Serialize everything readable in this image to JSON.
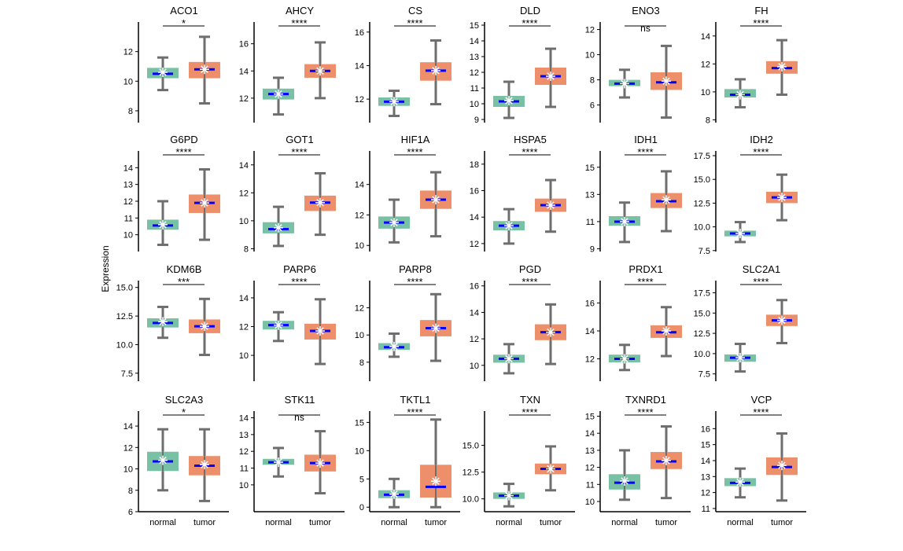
{
  "figure": {
    "ylabel": "Expression",
    "categories": [
      "normal",
      "tumor"
    ],
    "colors": {
      "normal": "#79c1a5",
      "tumor": "#ec8f6a",
      "whisker": "#6e6e6e",
      "median": "#0000ff",
      "mean": "#ffffff"
    }
  },
  "chart_data": [
    {
      "type": "boxplot",
      "title": "ACO1",
      "sig": "*",
      "ylim": [
        7.2,
        14.0
      ],
      "yticks": [
        8,
        10,
        12
      ],
      "boxes": [
        {
          "category": "normal",
          "min": 9.4,
          "q1": 10.2,
          "median": 10.5,
          "mean": 10.6,
          "q3": 10.9,
          "max": 11.6
        },
        {
          "category": "tumor",
          "min": 8.5,
          "q1": 10.2,
          "median": 10.8,
          "mean": 10.8,
          "q3": 11.3,
          "max": 13.0
        }
      ]
    },
    {
      "type": "boxplot",
      "title": "AHCY",
      "sig": "****",
      "ylim": [
        10.2,
        17.6
      ],
      "yticks": [
        12,
        14,
        16
      ],
      "boxes": [
        {
          "category": "normal",
          "min": 10.8,
          "q1": 11.9,
          "median": 12.3,
          "mean": 12.3,
          "q3": 12.7,
          "max": 13.5
        },
        {
          "category": "tumor",
          "min": 12.0,
          "q1": 13.5,
          "median": 14.0,
          "mean": 14.0,
          "q3": 14.5,
          "max": 16.1
        }
      ]
    },
    {
      "type": "boxplot",
      "title": "CS",
      "sig": "****",
      "ylim": [
        10.6,
        16.6
      ],
      "yticks": [
        12,
        14,
        16
      ],
      "boxes": [
        {
          "category": "normal",
          "min": 11.0,
          "q1": 11.6,
          "median": 11.85,
          "mean": 11.85,
          "q3": 12.1,
          "max": 12.5
        },
        {
          "category": "tumor",
          "min": 11.7,
          "q1": 13.1,
          "median": 13.7,
          "mean": 13.7,
          "q3": 14.2,
          "max": 15.5
        }
      ]
    },
    {
      "type": "boxplot",
      "title": "DLD",
      "sig": "****",
      "ylim": [
        8.8,
        15.2
      ],
      "yticks": [
        9,
        10,
        11,
        12,
        13,
        14,
        15
      ],
      "boxes": [
        {
          "category": "normal",
          "min": 9.1,
          "q1": 9.8,
          "median": 10.15,
          "mean": 10.2,
          "q3": 10.5,
          "max": 11.4
        },
        {
          "category": "tumor",
          "min": 9.8,
          "q1": 11.2,
          "median": 11.75,
          "mean": 11.75,
          "q3": 12.3,
          "max": 13.5
        }
      ]
    },
    {
      "type": "boxplot",
      "title": "ENO3",
      "sig": "ns",
      "ylim": [
        4.6,
        12.6
      ],
      "yticks": [
        6,
        8,
        10,
        12
      ],
      "boxes": [
        {
          "category": "normal",
          "min": 6.6,
          "q1": 7.5,
          "median": 7.7,
          "mean": 7.7,
          "q3": 8.0,
          "max": 8.8
        },
        {
          "category": "tumor",
          "min": 5.0,
          "q1": 7.2,
          "median": 7.8,
          "mean": 7.9,
          "q3": 8.6,
          "max": 10.7
        }
      ]
    },
    {
      "type": "boxplot",
      "title": "FH",
      "sig": "****",
      "ylim": [
        7.8,
        15.0
      ],
      "yticks": [
        8,
        10,
        12,
        14
      ],
      "boxes": [
        {
          "category": "normal",
          "min": 8.9,
          "q1": 9.6,
          "median": 9.8,
          "mean": 9.8,
          "q3": 10.2,
          "max": 10.9
        },
        {
          "category": "tumor",
          "min": 9.8,
          "q1": 11.3,
          "median": 11.7,
          "mean": 11.8,
          "q3": 12.2,
          "max": 13.7
        }
      ]
    },
    {
      "type": "boxplot",
      "title": "G6PD",
      "sig": "****",
      "ylim": [
        9.0,
        15.0
      ],
      "yticks": [
        10,
        11,
        12,
        13,
        14
      ],
      "boxes": [
        {
          "category": "normal",
          "min": 9.4,
          "q1": 10.3,
          "median": 10.55,
          "mean": 10.6,
          "q3": 10.9,
          "max": 12.0
        },
        {
          "category": "tumor",
          "min": 9.7,
          "q1": 11.3,
          "median": 11.9,
          "mean": 11.9,
          "q3": 12.4,
          "max": 13.9
        }
      ]
    },
    {
      "type": "boxplot",
      "title": "GOT1",
      "sig": "****",
      "ylim": [
        7.8,
        15.0
      ],
      "yticks": [
        8,
        10,
        12,
        14
      ],
      "boxes": [
        {
          "category": "normal",
          "min": 8.2,
          "q1": 9.1,
          "median": 9.4,
          "mean": 9.5,
          "q3": 9.9,
          "max": 11.0
        },
        {
          "category": "tumor",
          "min": 9.0,
          "q1": 10.7,
          "median": 11.3,
          "mean": 11.3,
          "q3": 11.8,
          "max": 13.4
        }
      ]
    },
    {
      "type": "boxplot",
      "title": "HIF1A",
      "sig": "****",
      "ylim": [
        9.6,
        16.2
      ],
      "yticks": [
        10,
        12,
        14
      ],
      "boxes": [
        {
          "category": "normal",
          "min": 10.2,
          "q1": 11.1,
          "median": 11.5,
          "mean": 11.5,
          "q3": 11.9,
          "max": 13.0
        },
        {
          "category": "tumor",
          "min": 10.6,
          "q1": 12.4,
          "median": 13.0,
          "mean": 13.0,
          "q3": 13.6,
          "max": 14.8
        }
      ]
    },
    {
      "type": "boxplot",
      "title": "HSPA5",
      "sig": "****",
      "ylim": [
        11.4,
        19.0
      ],
      "yticks": [
        12,
        14,
        16,
        18
      ],
      "boxes": [
        {
          "category": "normal",
          "min": 12.0,
          "q1": 13.0,
          "median": 13.35,
          "mean": 13.35,
          "q3": 13.7,
          "max": 14.6
        },
        {
          "category": "tumor",
          "min": 12.9,
          "q1": 14.4,
          "median": 14.9,
          "mean": 14.9,
          "q3": 15.4,
          "max": 16.8
        }
      ]
    },
    {
      "type": "boxplot",
      "title": "IDH1",
      "sig": "****",
      "ylim": [
        8.8,
        16.2
      ],
      "yticks": [
        9,
        11,
        13,
        15
      ],
      "boxes": [
        {
          "category": "normal",
          "min": 9.5,
          "q1": 10.7,
          "median": 11.0,
          "mean": 11.0,
          "q3": 11.4,
          "max": 12.4
        },
        {
          "category": "tumor",
          "min": 10.3,
          "q1": 12.0,
          "median": 12.5,
          "mean": 12.6,
          "q3": 13.1,
          "max": 14.7
        }
      ]
    },
    {
      "type": "boxplot",
      "title": "IDH2",
      "sig": "****",
      "ylim": [
        7.4,
        18.0
      ],
      "yticks": [
        7.5,
        10.0,
        12.5,
        15.0,
        17.5
      ],
      "boxes": [
        {
          "category": "normal",
          "min": 8.4,
          "q1": 9.0,
          "median": 9.3,
          "mean": 9.3,
          "q3": 9.6,
          "max": 10.5
        },
        {
          "category": "tumor",
          "min": 10.7,
          "q1": 12.5,
          "median": 13.1,
          "mean": 13.1,
          "q3": 13.7,
          "max": 15.5
        }
      ]
    },
    {
      "type": "boxplot",
      "title": "KDM6B",
      "sig": "***",
      "ylim": [
        6.8,
        15.6
      ],
      "yticks": [
        7.5,
        10.0,
        12.5,
        15.0
      ],
      "boxes": [
        {
          "category": "normal",
          "min": 10.6,
          "q1": 11.5,
          "median": 11.9,
          "mean": 12.0,
          "q3": 12.3,
          "max": 13.3
        },
        {
          "category": "tumor",
          "min": 9.1,
          "q1": 11.0,
          "median": 11.6,
          "mean": 11.6,
          "q3": 12.2,
          "max": 14.0
        }
      ]
    },
    {
      "type": "boxplot",
      "title": "PARP6",
      "sig": "****",
      "ylim": [
        8.2,
        15.2
      ],
      "yticks": [
        10,
        12,
        14
      ],
      "boxes": [
        {
          "category": "normal",
          "min": 11.0,
          "q1": 11.8,
          "median": 12.1,
          "mean": 12.1,
          "q3": 12.4,
          "max": 13.0
        },
        {
          "category": "tumor",
          "min": 9.4,
          "q1": 11.1,
          "median": 11.7,
          "mean": 11.7,
          "q3": 12.2,
          "max": 13.9
        }
      ]
    },
    {
      "type": "boxplot",
      "title": "PARP8",
      "sig": "****",
      "ylim": [
        6.6,
        14.0
      ],
      "yticks": [
        8,
        10,
        12
      ],
      "boxes": [
        {
          "category": "normal",
          "min": 8.4,
          "q1": 8.9,
          "median": 9.1,
          "mean": 9.15,
          "q3": 9.4,
          "max": 10.1
        },
        {
          "category": "tumor",
          "min": 8.1,
          "q1": 9.9,
          "median": 10.5,
          "mean": 10.5,
          "q3": 11.1,
          "max": 13.0
        }
      ]
    },
    {
      "type": "boxplot",
      "title": "PGD",
      "sig": "****",
      "ylim": [
        8.8,
        16.4
      ],
      "yticks": [
        10,
        12,
        14,
        16
      ],
      "boxes": [
        {
          "category": "normal",
          "min": 9.4,
          "q1": 10.2,
          "median": 10.5,
          "mean": 10.5,
          "q3": 10.8,
          "max": 11.6
        },
        {
          "category": "tumor",
          "min": 10.1,
          "q1": 11.9,
          "median": 12.5,
          "mean": 12.5,
          "q3": 13.1,
          "max": 14.6
        }
      ]
    },
    {
      "type": "boxplot",
      "title": "PRDX1",
      "sig": "****",
      "ylim": [
        10.4,
        17.6
      ],
      "yticks": [
        12,
        14,
        16
      ],
      "boxes": [
        {
          "category": "normal",
          "min": 11.2,
          "q1": 11.75,
          "median": 12.0,
          "mean": 12.0,
          "q3": 12.3,
          "max": 13.0
        },
        {
          "category": "tumor",
          "min": 12.2,
          "q1": 13.5,
          "median": 13.9,
          "mean": 14.0,
          "q3": 14.4,
          "max": 15.7
        }
      ]
    },
    {
      "type": "boxplot",
      "title": "SLC2A1",
      "sig": "****",
      "ylim": [
        6.6,
        19.0
      ],
      "yticks": [
        7.5,
        10.0,
        12.5,
        15.0,
        17.5
      ],
      "boxes": [
        {
          "category": "normal",
          "min": 7.8,
          "q1": 9.0,
          "median": 9.5,
          "mean": 9.5,
          "q3": 9.9,
          "max": 11.2
        },
        {
          "category": "tumor",
          "min": 11.3,
          "q1": 13.4,
          "median": 14.1,
          "mean": 14.1,
          "q3": 14.8,
          "max": 16.6
        }
      ]
    },
    {
      "type": "boxplot",
      "title": "SLC2A3",
      "sig": "*",
      "ylim": [
        6.0,
        15.4
      ],
      "yticks": [
        6,
        8,
        10,
        12,
        14
      ],
      "boxes": [
        {
          "category": "normal",
          "min": 8.0,
          "q1": 9.8,
          "median": 10.7,
          "mean": 10.8,
          "q3": 11.6,
          "max": 13.7
        },
        {
          "category": "tumor",
          "min": 7.0,
          "q1": 9.4,
          "median": 10.3,
          "mean": 10.4,
          "q3": 11.2,
          "max": 13.7
        }
      ]
    },
    {
      "type": "boxplot",
      "title": "STK11",
      "sig": "ns",
      "ylim": [
        8.4,
        14.4
      ],
      "yticks": [
        10,
        11,
        12,
        13,
        14
      ],
      "boxes": [
        {
          "category": "normal",
          "min": 10.5,
          "q1": 11.2,
          "median": 11.35,
          "mean": 11.35,
          "q3": 11.55,
          "max": 12.2
        },
        {
          "category": "tumor",
          "min": 9.5,
          "q1": 10.8,
          "median": 11.3,
          "mean": 11.3,
          "q3": 11.8,
          "max": 13.2
        }
      ]
    },
    {
      "type": "boxplot",
      "title": "TKTL1",
      "sig": "****",
      "ylim": [
        -0.8,
        17.0
      ],
      "yticks": [
        0,
        5,
        10,
        15
      ],
      "boxes": [
        {
          "category": "normal",
          "min": 0.0,
          "q1": 1.6,
          "median": 2.2,
          "mean": 2.3,
          "q3": 3.0,
          "max": 5.0
        },
        {
          "category": "tumor",
          "min": 0.0,
          "q1": 1.7,
          "median": 3.6,
          "mean": 4.6,
          "q3": 7.5,
          "max": 15.5
        }
      ]
    },
    {
      "type": "boxplot",
      "title": "TXN",
      "sig": "****",
      "ylim": [
        8.8,
        18.2
      ],
      "yticks": [
        10.0,
        12.5,
        15.0
      ],
      "boxes": [
        {
          "category": "normal",
          "min": 9.3,
          "q1": 10.0,
          "median": 10.3,
          "mean": 10.3,
          "q3": 10.6,
          "max": 11.4
        },
        {
          "category": "tumor",
          "min": 10.8,
          "q1": 12.3,
          "median": 12.8,
          "mean": 12.8,
          "q3": 13.3,
          "max": 14.9
        }
      ]
    },
    {
      "type": "boxplot",
      "title": "TXNRD1",
      "sig": "****",
      "ylim": [
        9.4,
        15.3
      ],
      "yticks": [
        10,
        11,
        12,
        13,
        14,
        15
      ],
      "boxes": [
        {
          "category": "normal",
          "min": 10.1,
          "q1": 10.7,
          "median": 11.1,
          "mean": 11.2,
          "q3": 11.6,
          "max": 13.0
        },
        {
          "category": "tumor",
          "min": 10.2,
          "q1": 11.9,
          "median": 12.35,
          "mean": 12.4,
          "q3": 12.9,
          "max": 14.4
        }
      ]
    },
    {
      "type": "boxplot",
      "title": "VCP",
      "sig": "****",
      "ylim": [
        10.8,
        17.1
      ],
      "yticks": [
        11,
        12,
        13,
        14,
        15,
        16
      ],
      "boxes": [
        {
          "category": "normal",
          "min": 11.7,
          "q1": 12.4,
          "median": 12.6,
          "mean": 12.65,
          "q3": 12.9,
          "max": 13.5
        },
        {
          "category": "tumor",
          "min": 11.5,
          "q1": 13.1,
          "median": 13.6,
          "mean": 13.7,
          "q3": 14.2,
          "max": 15.7
        }
      ]
    }
  ]
}
